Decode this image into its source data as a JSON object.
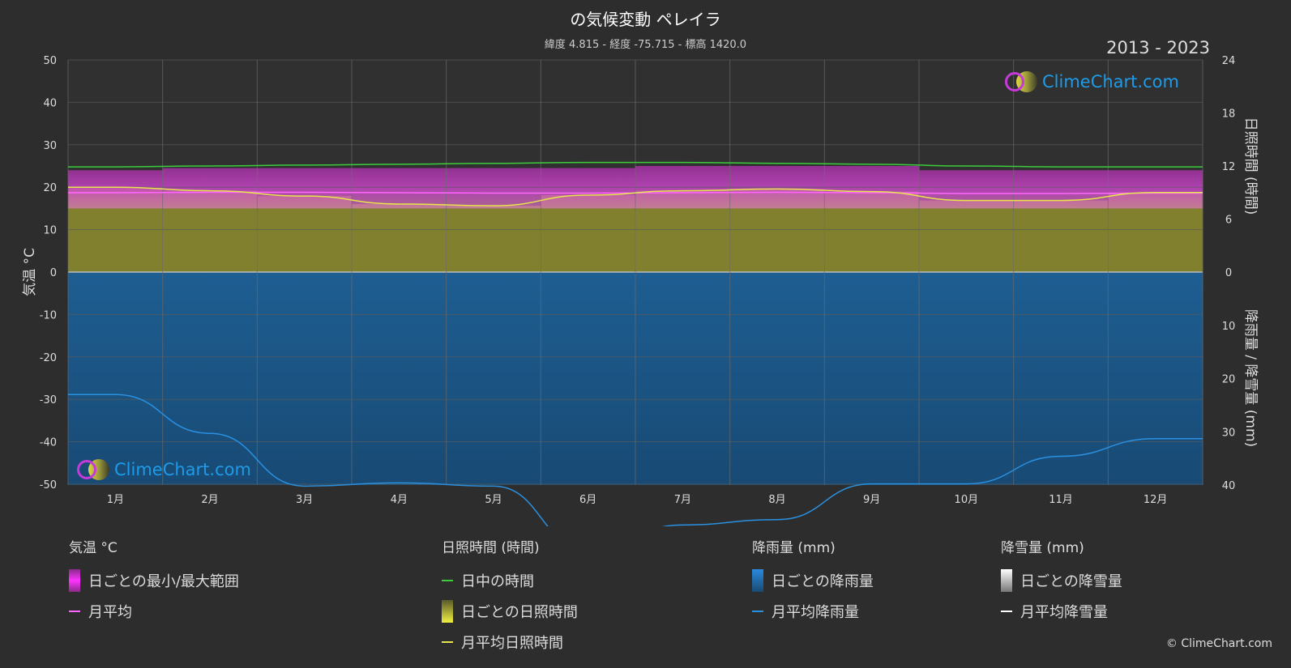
{
  "title": "の気候変動 ペレイラ",
  "subtitle": "緯度 4.815 - 経度 -75.715 - 標高 1420.0",
  "years": "2013 - 2023",
  "logo_text": "ClimeChart.com",
  "copyright": "© ClimeChart.com",
  "chart_data": {
    "type": "area",
    "x": [
      "1月",
      "2月",
      "3月",
      "4月",
      "5月",
      "6月",
      "7月",
      "8月",
      "9月",
      "10月",
      "11月",
      "12月"
    ],
    "axes": {
      "left": {
        "label": "気温 °C",
        "ylim": [
          -50,
          50
        ],
        "ticks": [
          50,
          40,
          30,
          20,
          10,
          0,
          -10,
          -20,
          -30,
          -40,
          -50
        ]
      },
      "right_top": {
        "label": "日照時間 (時間)",
        "ylim": [
          0,
          24
        ],
        "ticks": [
          24,
          18,
          12,
          6,
          0
        ]
      },
      "right_bottom": {
        "label": "降雨量 / 降雪量 (mm)",
        "ylim": [
          0,
          40
        ],
        "ticks": [
          0,
          10,
          20,
          30,
          40
        ]
      }
    },
    "grid": true,
    "series": [
      {
        "name": "日中の時間",
        "axis": "sunshine",
        "color": "#3ccc3c",
        "values": [
          11.9,
          12.0,
          12.1,
          12.2,
          12.3,
          12.4,
          12.4,
          12.3,
          12.2,
          12.0,
          11.9,
          11.9
        ]
      },
      {
        "name": "月平均",
        "axis": "temperature",
        "color": "#ff66ff",
        "values": [
          18.7,
          18.8,
          18.8,
          18.7,
          18.6,
          18.6,
          18.7,
          18.8,
          18.7,
          18.5,
          18.5,
          18.6
        ]
      },
      {
        "name": "日ごとの最小/最大範囲",
        "axis": "temperature",
        "color": "#d42cd4",
        "min": [
          15.0,
          15.0,
          15.0,
          15.0,
          15.0,
          15.0,
          15.0,
          15.0,
          15.0,
          15.0,
          15.0,
          15.0
        ],
        "max": [
          24.0,
          24.5,
          24.5,
          24.5,
          24.5,
          24.5,
          25.0,
          25.0,
          25.0,
          24.0,
          24.0,
          24.0
        ]
      },
      {
        "name": "月平均日照時間",
        "axis": "sunshine",
        "color": "#e6e64a",
        "values": [
          9.6,
          9.2,
          8.6,
          7.7,
          7.5,
          8.7,
          9.2,
          9.4,
          9.1,
          8.1,
          8.1,
          9.0
        ]
      },
      {
        "name": "日ごとの日照時間",
        "axis": "sunshine",
        "color": "#8a8a30",
        "values": [
          9.6,
          9.2,
          8.6,
          7.7,
          7.5,
          8.7,
          9.2,
          9.4,
          9.1,
          8.1,
          8.1,
          9.0
        ]
      },
      {
        "name": "月平均降雨量",
        "axis": "precipitation",
        "color": "#2a90e0",
        "values": [
          23.0,
          30.3,
          40.2,
          39.6,
          40.2,
          52.0,
          47.5,
          46.5,
          39.8,
          39.8,
          34.6,
          31.3
        ]
      },
      {
        "name": "日ごとの降雨量",
        "axis": "precipitation",
        "color": "#1f5a8c",
        "values": [
          40,
          40,
          40,
          40,
          40,
          40,
          40,
          40,
          40,
          40,
          40,
          40
        ]
      }
    ]
  },
  "legend": {
    "temperature": {
      "title": "気温 °C",
      "range": "日ごとの最小/最大範囲",
      "mean": "月平均"
    },
    "sunshine": {
      "title": "日照時間 (時間)",
      "daylight": "日中の時間",
      "daily": "日ごとの日照時間",
      "mean": "月平均日照時間"
    },
    "rain": {
      "title": "降雨量 (mm)",
      "daily": "日ごとの降雨量",
      "mean": "月平均降雨量"
    },
    "snow": {
      "title": "降雪量 (mm)",
      "daily": "日ごとの降雪量",
      "mean": "月平均降雪量"
    }
  }
}
